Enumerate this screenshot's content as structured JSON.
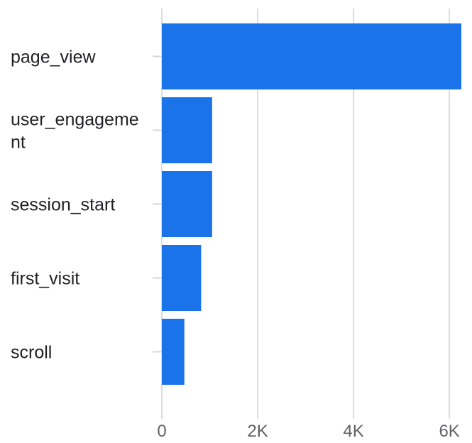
{
  "chart_data": {
    "type": "bar",
    "orientation": "horizontal",
    "categories": [
      "page_view",
      "user_engagement",
      "session_start",
      "first_visit",
      "scroll"
    ],
    "category_label_lines": [
      [
        "page_view"
      ],
      [
        "user_engageme",
        "nt"
      ],
      [
        "session_start"
      ],
      [
        "first_visit"
      ],
      [
        "scroll"
      ]
    ],
    "values": [
      6250,
      1050,
      1050,
      820,
      470
    ],
    "x_ticks": [
      0,
      2000,
      4000,
      6000
    ],
    "x_tick_labels": [
      "0",
      "2K",
      "4K",
      "6K"
    ],
    "xlim": [
      0,
      6250
    ],
    "grid": true,
    "title": "",
    "xlabel": "",
    "ylabel": "",
    "bar_color": "#1a73e8"
  }
}
